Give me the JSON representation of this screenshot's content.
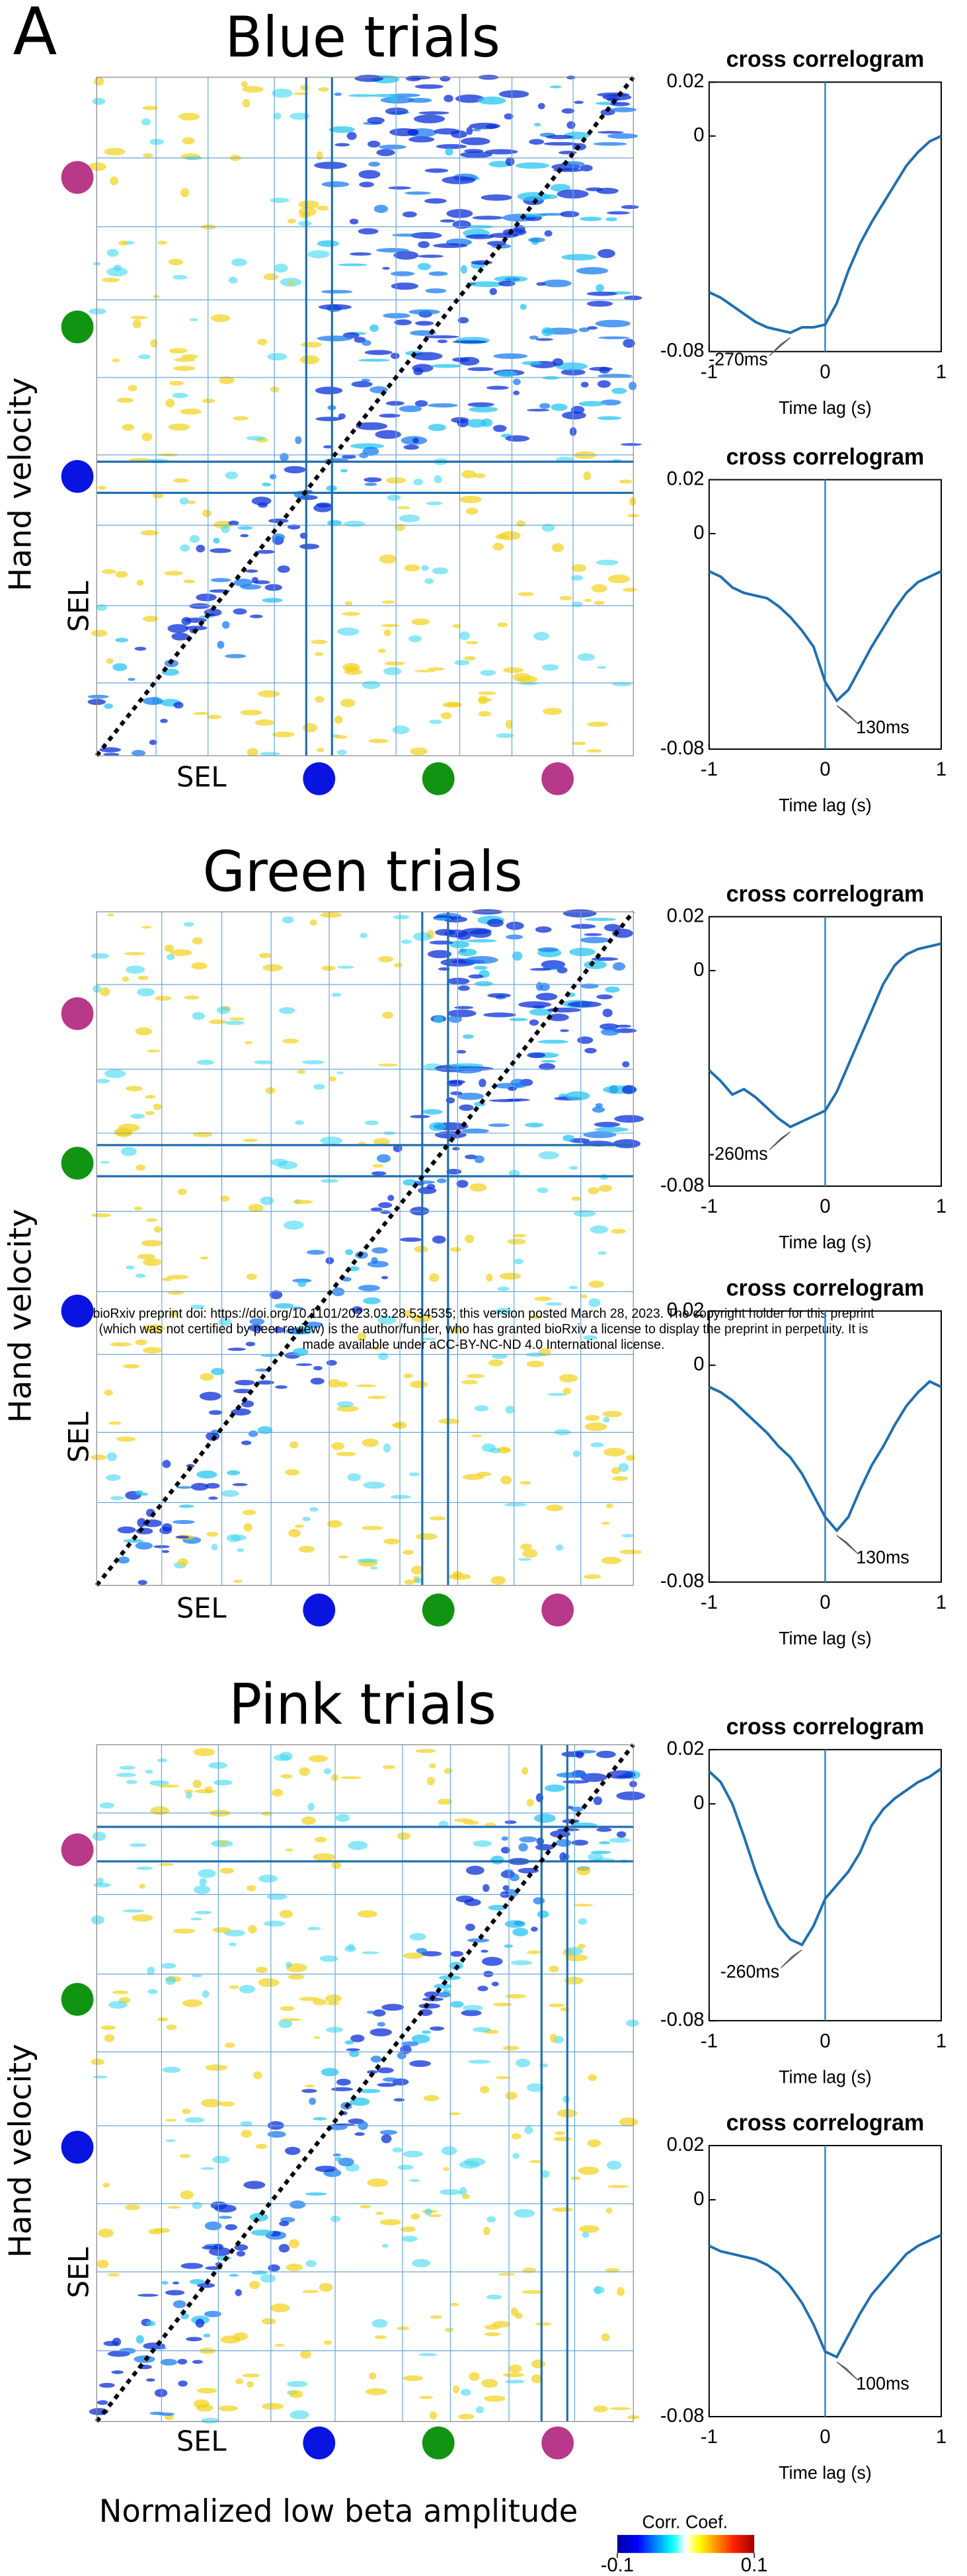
{
  "panel_label": "A",
  "panels": [
    {
      "title": "Blue trials"
    },
    {
      "title": "Green trials"
    },
    {
      "title": "Pink trials"
    }
  ],
  "y_axis_label": "Hand velocity",
  "sel_label": "SEL",
  "x_axis_label": "Normalized low beta amplitude",
  "colorbar": {
    "title": "Corr. Coef.",
    "lim": [
      -0.1,
      0.1
    ],
    "ticks": [
      -0.1,
      0.1
    ]
  },
  "watermark": [
    "bioRxiv preprint doi: https://doi.org/10.1101/2023.03.28.534535; this version posted March 28, 2023. The copyright holder for this preprint",
    "(which was not certified by peer review) is the author/funder, who has granted bioRxiv a license to display the preprint in perpetuity. It is",
    "made available under aCC-BY-NC-ND 4.0 International license."
  ],
  "chart_data": [
    {
      "type": "line",
      "title": "cross correlogram",
      "xlabel": "Time lag (s)",
      "x": [
        -1,
        -0.9,
        -0.8,
        -0.7,
        -0.6,
        -0.5,
        -0.4,
        -0.3,
        -0.2,
        -0.1,
        0,
        0.1,
        0.2,
        0.3,
        0.4,
        0.5,
        0.6,
        0.7,
        0.8,
        0.9,
        1
      ],
      "series": [
        {
          "color": "#1f6fb0",
          "values": [
            -0.058,
            -0.06,
            -0.063,
            -0.066,
            -0.069,
            -0.071,
            -0.072,
            -0.073,
            -0.071,
            -0.071,
            -0.07,
            -0.062,
            -0.05,
            -0.04,
            -0.032,
            -0.025,
            -0.018,
            -0.011,
            -0.006,
            -0.002,
            0.0
          ]
        }
      ],
      "xlim": [
        -1,
        1
      ],
      "ylim": [
        -0.08,
        0.02
      ],
      "xticks": [
        -1,
        0,
        1
      ],
      "yticks": [
        -0.08,
        0,
        0.02
      ],
      "reference_line_x": 0,
      "annotation": "-270ms"
    },
    {
      "type": "line",
      "title": "cross correlogram",
      "xlabel": "Time lag (s)",
      "x": [
        -1,
        -0.9,
        -0.8,
        -0.7,
        -0.6,
        -0.5,
        -0.4,
        -0.3,
        -0.2,
        -0.1,
        0,
        0.1,
        0.2,
        0.3,
        0.4,
        0.5,
        0.6,
        0.7,
        0.8,
        0.9,
        1
      ],
      "series": [
        {
          "color": "#1f6fb0",
          "values": [
            -0.014,
            -0.016,
            -0.02,
            -0.022,
            -0.023,
            -0.024,
            -0.027,
            -0.031,
            -0.036,
            -0.042,
            -0.055,
            -0.062,
            -0.058,
            -0.05,
            -0.042,
            -0.035,
            -0.028,
            -0.022,
            -0.018,
            -0.016,
            -0.014
          ]
        }
      ],
      "xlim": [
        -1,
        1
      ],
      "ylim": [
        -0.08,
        0.02
      ],
      "xticks": [
        -1,
        0,
        1
      ],
      "yticks": [
        -0.08,
        0,
        0.02
      ],
      "reference_line_x": 0,
      "annotation": "130ms"
    },
    {
      "type": "line",
      "title": "cross correlogram",
      "xlabel": "Time lag (s)",
      "x": [
        -1,
        -0.9,
        -0.8,
        -0.7,
        -0.6,
        -0.5,
        -0.4,
        -0.3,
        -0.2,
        -0.1,
        0,
        0.1,
        0.2,
        0.3,
        0.4,
        0.5,
        0.6,
        0.7,
        0.8,
        0.9,
        1
      ],
      "series": [
        {
          "color": "#1f6fb0",
          "values": [
            -0.037,
            -0.041,
            -0.046,
            -0.044,
            -0.047,
            -0.051,
            -0.055,
            -0.058,
            -0.056,
            -0.054,
            -0.052,
            -0.045,
            -0.035,
            -0.025,
            -0.015,
            -0.005,
            0.002,
            0.006,
            0.008,
            0.009,
            0.01
          ]
        }
      ],
      "xlim": [
        -1,
        1
      ],
      "ylim": [
        -0.08,
        0.02
      ],
      "xticks": [
        -1,
        0,
        1
      ],
      "yticks": [
        -0.08,
        0,
        0.02
      ],
      "reference_line_x": 0,
      "annotation": "-260ms"
    },
    {
      "type": "line",
      "title": "cross correlogram",
      "xlabel": "Time lag (s)",
      "x": [
        -1,
        -0.9,
        -0.8,
        -0.7,
        -0.6,
        -0.5,
        -0.4,
        -0.3,
        -0.2,
        -0.1,
        0,
        0.1,
        0.2,
        0.3,
        0.4,
        0.5,
        0.6,
        0.7,
        0.8,
        0.9,
        1
      ],
      "series": [
        {
          "color": "#1f6fb0",
          "values": [
            -0.008,
            -0.01,
            -0.013,
            -0.017,
            -0.021,
            -0.025,
            -0.03,
            -0.034,
            -0.04,
            -0.048,
            -0.056,
            -0.061,
            -0.056,
            -0.046,
            -0.037,
            -0.03,
            -0.022,
            -0.015,
            -0.01,
            -0.006,
            -0.008
          ]
        }
      ],
      "xlim": [
        -1,
        1
      ],
      "ylim": [
        -0.08,
        0.02
      ],
      "xticks": [
        -1,
        0,
        1
      ],
      "yticks": [
        -0.08,
        0,
        0.02
      ],
      "reference_line_x": 0,
      "annotation": "130ms"
    },
    {
      "type": "line",
      "title": "cross correlogram",
      "xlabel": "Time lag (s)",
      "x": [
        -1,
        -0.9,
        -0.8,
        -0.7,
        -0.6,
        -0.5,
        -0.4,
        -0.3,
        -0.2,
        -0.1,
        0,
        0.1,
        0.2,
        0.3,
        0.4,
        0.5,
        0.6,
        0.7,
        0.8,
        0.9,
        1
      ],
      "series": [
        {
          "color": "#1f6fb0",
          "values": [
            0.012,
            0.008,
            0.0,
            -0.012,
            -0.025,
            -0.036,
            -0.045,
            -0.05,
            -0.052,
            -0.045,
            -0.035,
            -0.03,
            -0.025,
            -0.018,
            -0.008,
            -0.002,
            0.002,
            0.005,
            0.008,
            0.01,
            0.013
          ]
        }
      ],
      "xlim": [
        -1,
        1
      ],
      "ylim": [
        -0.08,
        0.02
      ],
      "xticks": [
        -1,
        0,
        1
      ],
      "yticks": [
        -0.08,
        0,
        0.02
      ],
      "reference_line_x": 0,
      "annotation": "-260ms"
    },
    {
      "type": "line",
      "title": "cross correlogram",
      "xlabel": "Time lag (s)",
      "x": [
        -1,
        -0.9,
        -0.8,
        -0.7,
        -0.6,
        -0.5,
        -0.4,
        -0.3,
        -0.2,
        -0.1,
        0,
        0.1,
        0.2,
        0.3,
        0.4,
        0.5,
        0.6,
        0.7,
        0.8,
        0.9,
        1
      ],
      "series": [
        {
          "color": "#1f6fb0",
          "values": [
            -0.017,
            -0.019,
            -0.02,
            -0.021,
            -0.022,
            -0.024,
            -0.027,
            -0.032,
            -0.038,
            -0.046,
            -0.056,
            -0.058,
            -0.05,
            -0.042,
            -0.035,
            -0.03,
            -0.025,
            -0.02,
            -0.017,
            -0.015,
            -0.013
          ]
        }
      ],
      "xlim": [
        -1,
        1
      ],
      "ylim": [
        -0.08,
        0.02
      ],
      "xticks": [
        -1,
        0,
        1
      ],
      "yticks": [
        -0.08,
        0,
        0.02
      ],
      "reference_line_x": 0,
      "annotation": "100ms"
    }
  ]
}
